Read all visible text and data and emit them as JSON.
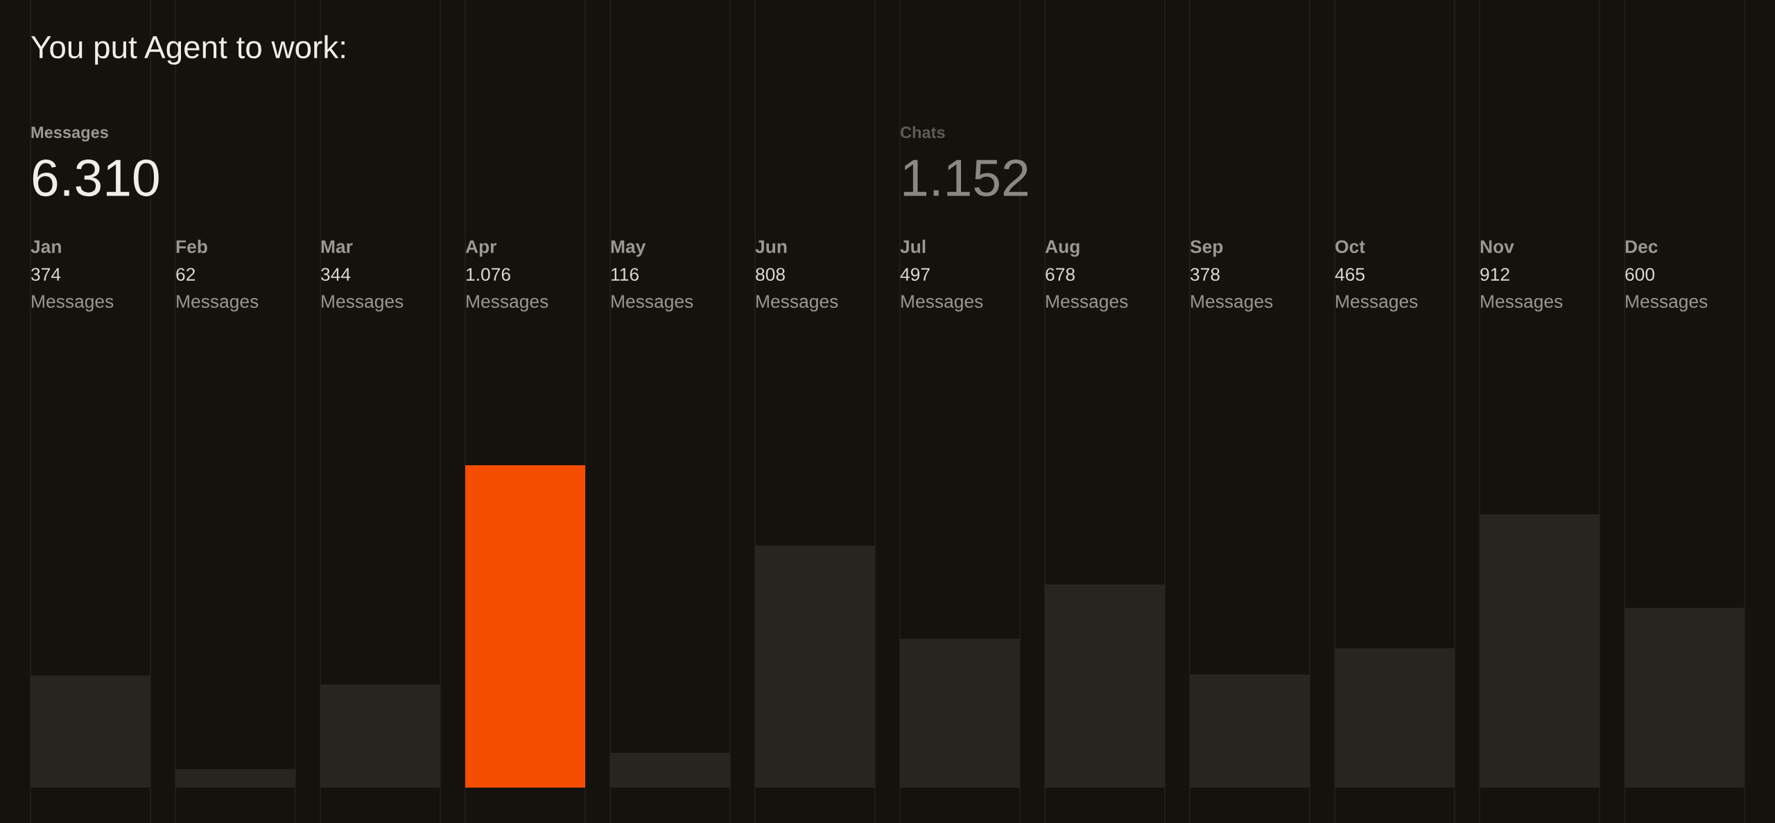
{
  "chart_data": {
    "type": "bar",
    "title": "You put Agent to work:",
    "annotations": [
      "Messages",
      "6.310",
      "Chats",
      "1.152"
    ],
    "categories": [
      "Jan",
      "Feb",
      "Mar",
      "Apr",
      "May",
      "Jun",
      "Jul",
      "Aug",
      "Sep",
      "Oct",
      "Nov",
      "Dec"
    ],
    "series": [
      {
        "name": "Messages",
        "values": [
          374,
          62,
          344,
          1076,
          116,
          808,
          497,
          678,
          378,
          465,
          912,
          600
        ],
        "colors": [
          "#26251f",
          "#26251f",
          "#26251f",
          "#f54e00",
          "#26251f",
          "#26251f",
          "#26251f",
          "#26251f",
          "#26251f",
          "#26251f",
          "#26251f",
          "#26251f"
        ],
        "value_labels": [
          "374",
          "62",
          "344",
          "1.076",
          "116",
          "808",
          "497",
          "678",
          "378",
          "465",
          "912",
          "600"
        ]
      }
    ],
    "grid": "x"
  }
}
